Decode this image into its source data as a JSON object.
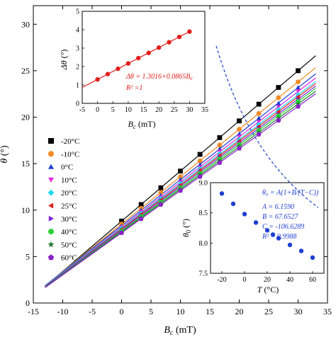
{
  "chart_data": [
    {
      "type": "scatter",
      "xlabel": "B_c (mT)",
      "xlabel_main": "B",
      "xlabel_sub": "c",
      "xlabel_unit": " (mT)",
      "ylabel": "θ (°)",
      "ylabel_main": "θ",
      "ylabel_unit": " (°)",
      "xlim": [
        -15,
        35
      ],
      "ylim": [
        0,
        32
      ],
      "xticks": [
        -15,
        -10,
        -5,
        0,
        5,
        10,
        15,
        20,
        25,
        30,
        35
      ],
      "yticks": [
        0,
        5,
        10,
        15,
        20,
        25,
        30
      ],
      "x": [
        0,
        3.33,
        6.67,
        10,
        13.33,
        16.67,
        20,
        23.33,
        26.67,
        30
      ],
      "fit_x_range": [
        -13,
        33
      ],
      "series": [
        {
          "name": "-20°C",
          "color": "#000000",
          "marker": "square",
          "y": [
            8.82,
            10.6,
            12.4,
            14.2,
            16.0,
            17.8,
            19.6,
            21.4,
            23.2,
            25.0
          ]
        },
        {
          "name": "-10°C",
          "color": "#f08a24",
          "marker": "circle",
          "y": [
            8.5,
            10.2,
            11.9,
            13.6,
            15.3,
            17.0,
            18.7,
            20.4,
            22.1,
            23.8
          ]
        },
        {
          "name": "0°C",
          "color": "#1f3fd0",
          "marker": "triangle-up",
          "y": [
            8.3,
            10.0,
            11.6,
            13.3,
            14.9,
            16.6,
            18.2,
            19.9,
            21.5,
            23.2
          ]
        },
        {
          "name": "10°C",
          "color": "#e02be0",
          "marker": "triangle-down",
          "y": [
            8.15,
            9.8,
            11.4,
            13.0,
            14.6,
            16.3,
            17.9,
            19.5,
            21.1,
            22.8
          ]
        },
        {
          "name": "20°C",
          "color": "#20d8f0",
          "marker": "diamond",
          "y": [
            8.05,
            9.65,
            11.25,
            12.85,
            14.45,
            16.05,
            17.6,
            19.2,
            20.8,
            22.4
          ]
        },
        {
          "name": "25°C",
          "color": "#e0201c",
          "marker": "triangle-left",
          "y": [
            7.95,
            9.55,
            11.1,
            12.7,
            14.3,
            15.9,
            17.45,
            19.0,
            20.6,
            22.2
          ]
        },
        {
          "name": "30°C",
          "color": "#7a22d8",
          "marker": "triangle-right",
          "y": [
            7.85,
            9.45,
            11.0,
            12.55,
            14.1,
            15.7,
            17.25,
            18.8,
            20.35,
            21.95
          ]
        },
        {
          "name": "40°C",
          "color": "#2bcf3a",
          "marker": "circle",
          "y": [
            7.75,
            9.3,
            10.85,
            12.4,
            13.95,
            15.5,
            17.05,
            18.6,
            20.15,
            21.7
          ]
        },
        {
          "name": "50°C",
          "color": "#1f7a2a",
          "marker": "star",
          "y": [
            7.65,
            9.2,
            10.7,
            12.25,
            13.8,
            15.3,
            16.85,
            18.35,
            19.9,
            21.4
          ]
        },
        {
          "name": "60°C",
          "color": "#8a22c8",
          "marker": "pentagon",
          "y": [
            7.55,
            9.05,
            10.6,
            12.1,
            13.6,
            15.1,
            16.65,
            18.15,
            19.65,
            21.15
          ]
        }
      ]
    },
    {
      "type": "scatter",
      "xlabel": "B_c (mT)",
      "xlabel_main": "B",
      "xlabel_sub": "c",
      "xlabel_unit": " (mT)",
      "ylabel": "Δθ (°)",
      "ylabel_main": "Δθ",
      "ylabel_unit": " (°)",
      "xlim": [
        -5,
        35
      ],
      "ylim": [
        0,
        5
      ],
      "xticks": [
        -5,
        0,
        5,
        10,
        15,
        20,
        25,
        30,
        35
      ],
      "yticks": [
        0,
        1,
        2,
        3,
        4,
        5
      ],
      "x": [
        0,
        3.33,
        6.67,
        10,
        13.33,
        16.67,
        20,
        23.33,
        26.67,
        30
      ],
      "y": [
        1.3,
        1.59,
        1.88,
        2.17,
        2.46,
        2.74,
        3.03,
        3.32,
        3.61,
        3.9
      ],
      "fit_x_range": [
        -5,
        30
      ],
      "color": "#e0201c",
      "annotation_eq": "Δθ = 1.3016+0.0865B",
      "annotation_eq_sub": "c",
      "annotation_r2": "R² =1"
    },
    {
      "type": "scatter",
      "xlabel": "T (°C)",
      "xlabel_main": "T",
      "xlabel_unit": " (°C)",
      "ylabel": "θ_0 (°)",
      "ylabel_main": "θ",
      "ylabel_sub": "0",
      "ylabel_unit": " (°)",
      "xlim": [
        -30,
        70
      ],
      "ylim": [
        7.5,
        9.0
      ],
      "xticks": [
        -20,
        0,
        20,
        40,
        60
      ],
      "yticks": [
        7.5,
        8.0,
        8.5,
        9.0
      ],
      "x": [
        -20,
        -10,
        0,
        10,
        20,
        25,
        30,
        40,
        50,
        60
      ],
      "y": [
        8.82,
        8.65,
        8.48,
        8.34,
        8.21,
        8.14,
        8.08,
        7.97,
        7.87,
        7.76
      ],
      "color": "#1f3fd0",
      "annotation_eq": "θ₀ = A(1+B/(T−C))",
      "params": [
        {
          "name": "A",
          "value": "6.1590"
        },
        {
          "name": "B",
          "value": "67.6527"
        },
        {
          "name": "C",
          "value": "-106.6289"
        },
        {
          "name": "R²",
          "value": "0.9988"
        }
      ]
    }
  ]
}
